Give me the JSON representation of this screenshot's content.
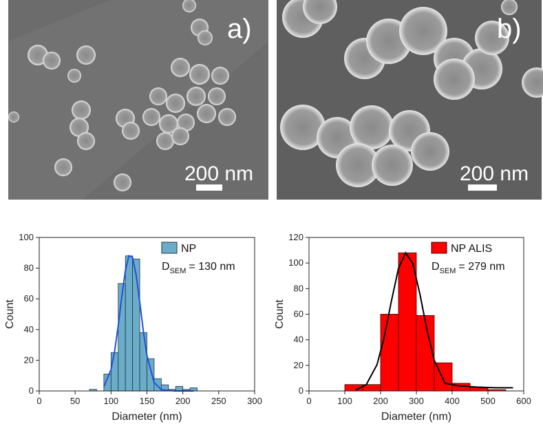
{
  "images": [
    {
      "label": "a)",
      "scale_bar": "200 nm"
    },
    {
      "label": "b)",
      "scale_bar": "200 nm"
    }
  ],
  "chart_data": [
    {
      "type": "histogram",
      "xlabel": "Diameter (nm)",
      "ylabel": "Count",
      "bins": [
        70,
        80,
        90,
        100,
        110,
        120,
        130,
        140,
        150,
        160,
        170,
        180,
        190,
        200,
        210,
        220
      ],
      "values": [
        1,
        0,
        11,
        25,
        70,
        88,
        86,
        38,
        21,
        8,
        4,
        1,
        3,
        1,
        2
      ],
      "color": "#6badc8",
      "edge_color": "#1d3540",
      "legend_name": "NP",
      "annotation": {
        "main": "D",
        "sub": "SEM",
        "rest": "= 130 nm"
      },
      "fit": {
        "color": "#1f4fe0",
        "x": [
          90,
          100,
          105,
          110,
          115,
          120,
          125,
          130,
          135,
          140,
          145,
          150,
          160,
          170,
          190,
          215
        ],
        "values": [
          2.7,
          13.9,
          25.9,
          42.6,
          61.6,
          78.5,
          88.1,
          87,
          75.6,
          57.8,
          38.9,
          23.1,
          5.5,
          0.8,
          0,
          0
        ]
      },
      "xlim": [
        0,
        300
      ],
      "xticks": [
        0,
        50,
        100,
        150,
        200,
        250,
        300
      ],
      "ylim": [
        0,
        100
      ],
      "yticks": [
        0,
        20,
        40,
        60,
        80,
        100
      ]
    },
    {
      "type": "histogram",
      "xlabel": "Diameter (nm)",
      "ylabel": "Count",
      "bins": [
        100,
        150,
        200,
        250,
        300,
        350,
        400,
        450,
        500,
        550
      ],
      "values": [
        5,
        5,
        60,
        108,
        59,
        22,
        6,
        3,
        1
      ],
      "color": "#ff0000",
      "edge_color": "#3a0000",
      "legend_name": "NP ALIS",
      "annotation": {
        "main": "D",
        "sub": "SEM",
        "rest": "= 279 nm"
      },
      "fit": {
        "color": "#000000",
        "x": [
          130,
          160,
          190,
          210,
          230,
          250,
          270,
          290,
          310,
          330,
          350,
          380,
          420,
          470,
          520,
          570
        ],
        "values": [
          0.7,
          4.9,
          20.5,
          41.8,
          69.9,
          95.8,
          108,
          99.7,
          75.6,
          47.1,
          24,
          6,
          4,
          3,
          2.5,
          2.5
        ]
      },
      "xlim": [
        0,
        600
      ],
      "xticks": [
        0,
        100,
        200,
        300,
        400,
        500,
        600
      ],
      "ylim": [
        0,
        120
      ],
      "yticks": [
        0,
        20,
        40,
        60,
        80,
        100,
        120
      ]
    }
  ]
}
